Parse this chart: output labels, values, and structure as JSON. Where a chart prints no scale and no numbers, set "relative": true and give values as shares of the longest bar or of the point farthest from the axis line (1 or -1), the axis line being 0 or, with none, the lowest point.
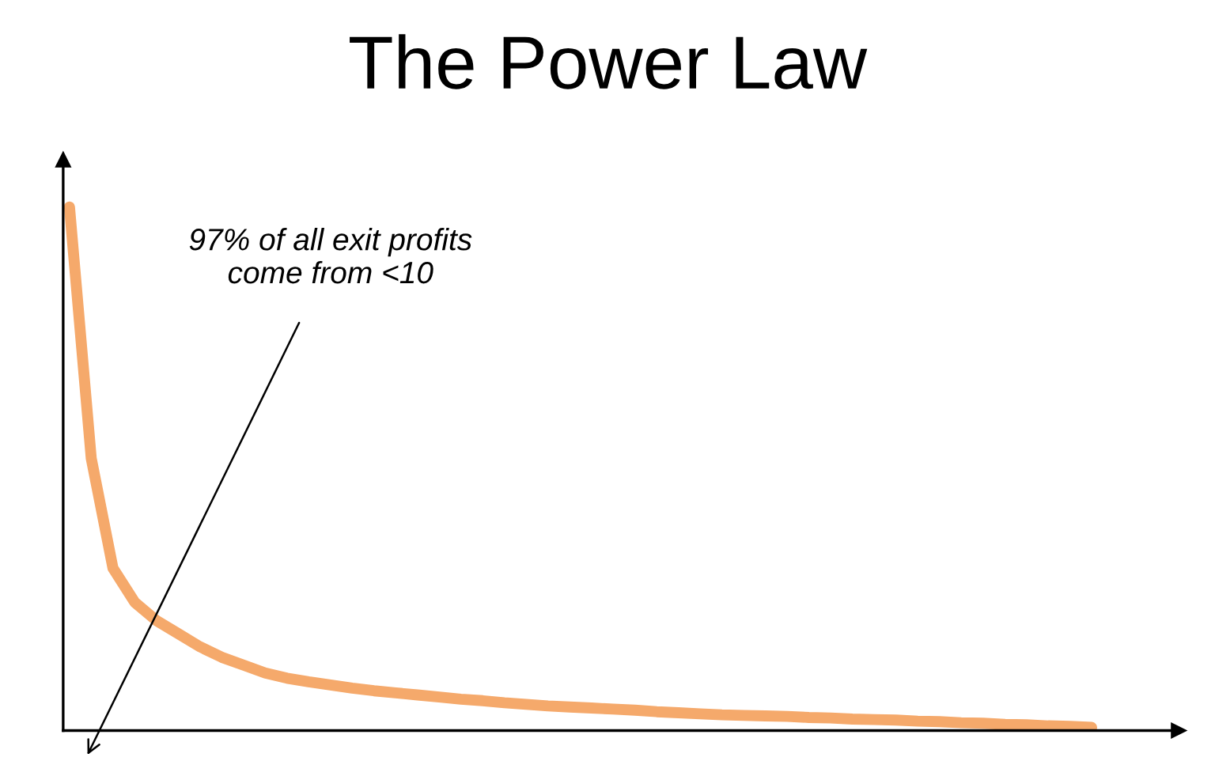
{
  "chart_data": {
    "type": "line",
    "title": "The Power Law",
    "relative": true,
    "color": "#f5a96b",
    "grid": false,
    "legend": false,
    "marker": "none",
    "line_style": "solid",
    "annotations": [
      "97% of all exit profits\ncome from <10"
    ],
    "categories": [
      null,
      null,
      null,
      null,
      null,
      null,
      null,
      null,
      null,
      null,
      null,
      null,
      null,
      null,
      null,
      null,
      null,
      null,
      null,
      null,
      null,
      null,
      null,
      null,
      null,
      null,
      null,
      null,
      null,
      null,
      null,
      null,
      null,
      null,
      null,
      null,
      null,
      null,
      null,
      null,
      null,
      null,
      null,
      null,
      null,
      null,
      null,
      null
    ],
    "values": [
      1.0,
      0.52,
      0.31,
      0.245,
      0.21,
      0.185,
      0.16,
      0.14,
      0.125,
      0.11,
      0.1,
      0.093,
      0.087,
      0.081,
      0.076,
      0.072,
      0.068,
      0.064,
      0.06,
      0.057,
      0.053,
      0.05,
      0.047,
      0.045,
      0.043,
      0.041,
      0.039,
      0.036,
      0.034,
      0.032,
      0.03,
      0.029,
      0.028,
      0.027,
      0.025,
      0.024,
      0.022,
      0.021,
      0.02,
      0.018,
      0.017,
      0.015,
      0.014,
      0.012,
      0.011,
      0.009,
      0.008,
      0.006
    ]
  }
}
